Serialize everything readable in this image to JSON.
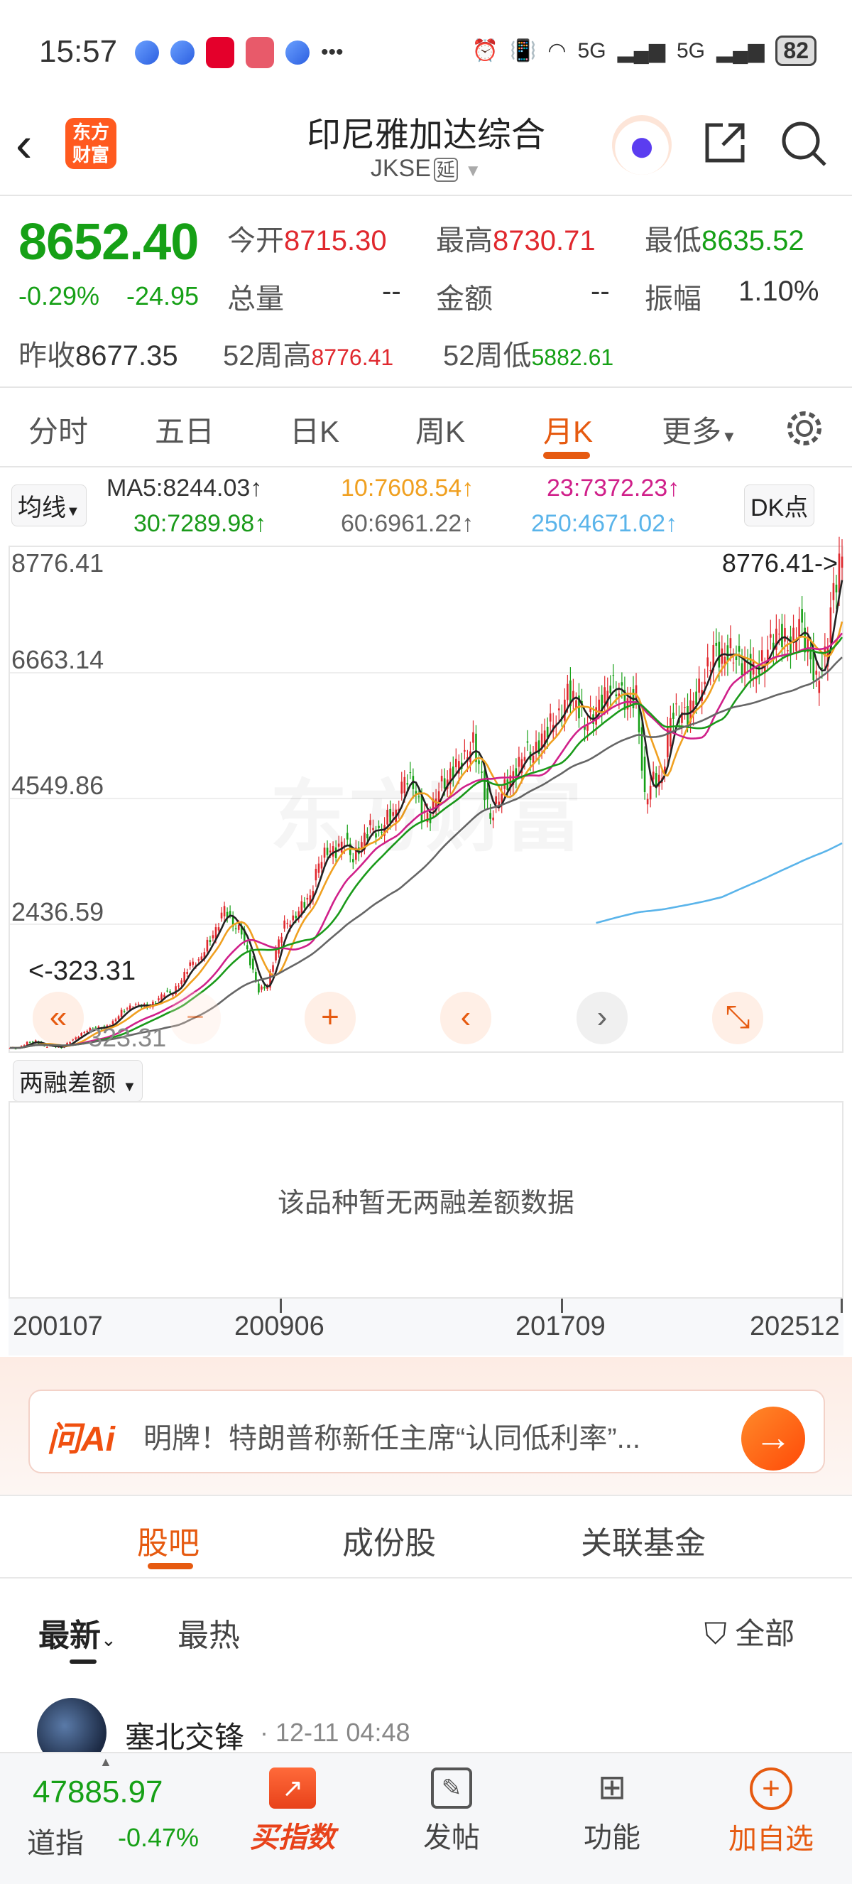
{
  "status_bar": {
    "time": "15:57",
    "battery": "82",
    "network": "5G"
  },
  "header": {
    "title": "印尼雅加达综合",
    "code": "JKSE",
    "delay_tag": "延",
    "logo_text": "东方财富"
  },
  "quote": {
    "price": "8652.40",
    "change_pct": "-0.29%",
    "change": "-24.95",
    "open_label": "今开",
    "open": "8715.30",
    "high_label": "最高",
    "high": "8730.71",
    "low_label": "最低",
    "low": "8635.52",
    "volume_label": "总量",
    "volume": "--",
    "amount_label": "金额",
    "amount": "--",
    "amplitude_label": "振幅",
    "amplitude": "1.10%",
    "prev_close_label": "昨收",
    "prev_close": "8677.35",
    "w52_high_label": "52周高",
    "w52_high": "8776.41",
    "w52_low_label": "52周低",
    "w52_low": "5882.61"
  },
  "tabs": [
    {
      "label": "分时"
    },
    {
      "label": "五日"
    },
    {
      "label": "日K"
    },
    {
      "label": "周K"
    },
    {
      "label": "月K",
      "active": true
    },
    {
      "label": "更多"
    }
  ],
  "ma_selector": "均线",
  "dk_button": "DK点",
  "ma_legend": [
    {
      "label": "MA5:8244.03↑",
      "color": "#222222"
    },
    {
      "label": "10:7608.54↑",
      "color": "#f0a020"
    },
    {
      "label": "23:7372.23↑",
      "color": "#d0208a"
    },
    {
      "label": "30:7289.98↑",
      "color": "#1a9a1a"
    },
    {
      "label": "60:6961.22↑",
      "color": "#666666"
    },
    {
      "label": "250:4671.02↑",
      "color": "#5ab4ea"
    }
  ],
  "chart_data": {
    "type": "candlestick",
    "period": "monthly",
    "y_ticks": [
      "8776.41",
      "6663.14",
      "4549.86",
      "2436.59",
      "323.31"
    ],
    "ylim": [
      323.31,
      8776.41
    ],
    "x_ticks": [
      "200107",
      "200906",
      "201709",
      "202512"
    ],
    "max_marker": "8776.41->",
    "min_marker": "<-323.31",
    "watermark": "东方财富",
    "up_color": "#e0282e",
    "down_color": "#16a016",
    "quarterly_close": [
      392,
      392,
      481,
      505,
      420,
      425,
      398,
      505,
      597,
      691,
      735,
      732,
      820,
      1000,
      1080,
      1122,
      1079,
      1162,
      1322,
      1310,
      1534,
      1805,
      1830,
      2139,
      2359,
      2745,
      2447,
      2349,
      1832,
      1355,
      1434,
      2026,
      2468,
      2534,
      2777,
      2913,
      3501,
      3704,
      3679,
      3888,
      3549,
      3822,
      4121,
      3955,
      4262,
      4317,
      4941,
      4819,
      4316,
      4274,
      4768,
      4879,
      5138,
      5227,
      5519,
      4911,
      4224,
      4593,
      4845,
      5017,
      5365,
      5297,
      5568,
      5830,
      5901,
      6356,
      6189,
      5799,
      5977,
      6194,
      6469,
      6359,
      6169,
      6300,
      4539,
      4905,
      4870,
      5979,
      5986,
      5985,
      6287,
      6581,
      7071,
      6912,
      7041,
      6851,
      6806,
      6662,
      6940,
      7273,
      7289,
      7064,
      7528,
      7080,
      6511,
      6927,
      8061,
      8652
    ]
  },
  "chart_controls": [
    "«",
    "−",
    "+",
    "‹",
    "›",
    "⤡"
  ],
  "sub_indicator": {
    "label": "两融差额",
    "empty_text": "该品种暂无两融差额数据"
  },
  "ai_bar": {
    "logo": "问Ai",
    "text": "明牌！特朗普称新任主席“认同低利率”..."
  },
  "section_tabs": [
    {
      "label": "股吧",
      "active": true
    },
    {
      "label": "成份股"
    },
    {
      "label": "关联基金"
    }
  ],
  "filter": {
    "latest": "最新",
    "hot": "最热",
    "all": "全部"
  },
  "post": {
    "author": "塞北交锋",
    "time": "· 12-11 04:48"
  },
  "bottom_bar": {
    "index_value": "47885.97",
    "index_name": "道指",
    "index_change": "-0.47%",
    "buy_index": "买指数",
    "post": "发帖",
    "functions": "功能",
    "add_watch": "加自选"
  }
}
